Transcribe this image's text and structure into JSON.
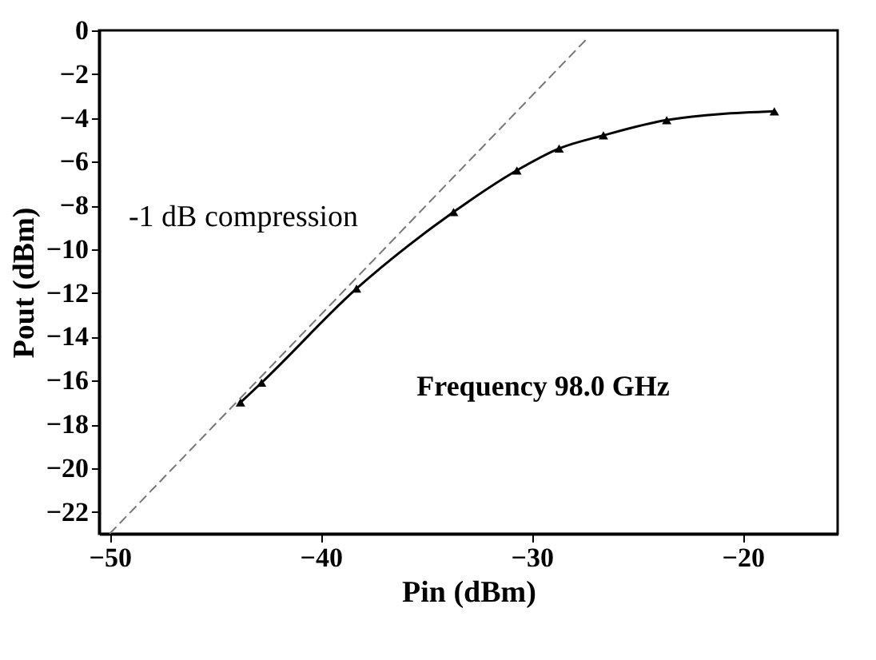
{
  "chart_data": {
    "type": "line",
    "xlabel": "Pin (dBm)",
    "ylabel": "Pout (dBm)",
    "xlim": [
      -50.5,
      -15.5
    ],
    "ylim": [
      -23,
      0
    ],
    "xticks": [
      -50,
      -40,
      -30,
      -20
    ],
    "yticks": [
      0,
      -2,
      -4,
      -6,
      -8,
      -10,
      -12,
      -14,
      -16,
      -18,
      -20,
      -22
    ],
    "grid": false,
    "series": [
      {
        "color": "#000000",
        "marker": "triangle",
        "line_style": "solid",
        "x": [
          -43.8,
          -42.8,
          -38.3,
          -33.7,
          -30.7,
          -28.7,
          -26.6,
          -23.6,
          -18.5
        ],
        "values": [
          -17,
          -16.1,
          -11.8,
          -8.3,
          -6.4,
          -5.4,
          -4.8,
          -4.1,
          -3.7
        ]
      },
      {
        "color": "#777777",
        "marker": "none",
        "line_style": "dashed",
        "x": [
          -50,
          -27.3
        ],
        "values": [
          -23,
          -0.3
        ]
      }
    ],
    "annotations": [
      "-1 dB compression",
      "Frequency 98.0 GHz"
    ]
  }
}
